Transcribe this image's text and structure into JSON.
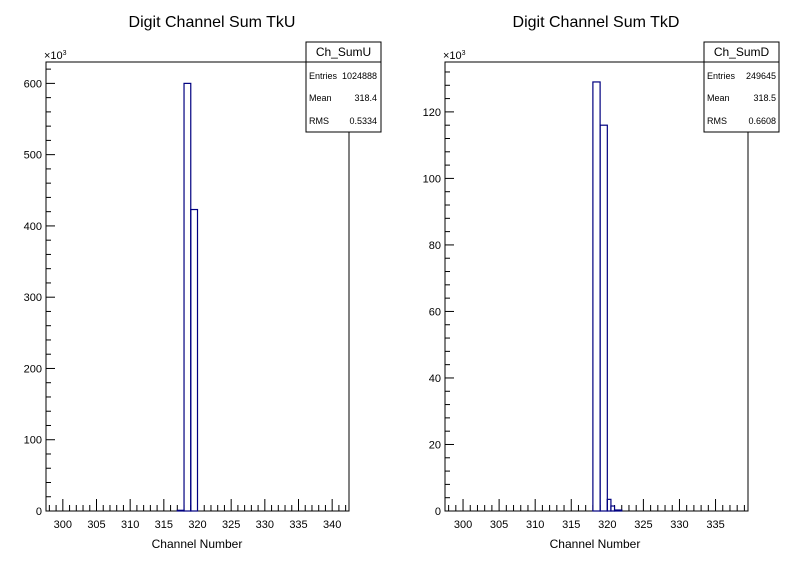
{
  "chart_data": [
    {
      "type": "histogram",
      "title": "Digit Channel Sum TkU",
      "xlabel": "Channel Number",
      "ylabel": "",
      "exponent_label": "×10",
      "exponent_sup": "3",
      "xlim": [
        297.5,
        342.5
      ],
      "ylim": [
        0,
        630
      ],
      "x_ticks": [
        300,
        305,
        310,
        315,
        320,
        325,
        330,
        335,
        340
      ],
      "y_ticks": [
        0,
        100,
        200,
        300,
        400,
        500,
        600
      ],
      "bins": [
        {
          "lo": 317.0,
          "hi": 318.0,
          "value": 1
        },
        {
          "lo": 318.0,
          "hi": 319.0,
          "value": 600
        },
        {
          "lo": 319.0,
          "hi": 320.0,
          "value": 423
        },
        {
          "lo": 320.0,
          "hi": 321.0,
          "value": 0
        }
      ],
      "stats": {
        "name": "Ch_SumU",
        "rows": [
          {
            "label": "Entries",
            "value": "1024888"
          },
          {
            "label": "Mean",
            "value": "318.4"
          },
          {
            "label": "RMS",
            "value": "0.5334"
          }
        ]
      }
    },
    {
      "type": "histogram",
      "title": "Digit Channel Sum TkD",
      "xlabel": "Channel Number",
      "ylabel": "",
      "exponent_label": "×10",
      "exponent_sup": "3",
      "xlim": [
        297.5,
        339.5
      ],
      "ylim": [
        0,
        135
      ],
      "x_ticks": [
        300,
        305,
        310,
        315,
        320,
        325,
        330,
        335
      ],
      "y_ticks": [
        0,
        20,
        40,
        60,
        80,
        100,
        120
      ],
      "bins": [
        {
          "lo": 318.0,
          "hi": 319.0,
          "value": 129
        },
        {
          "lo": 319.0,
          "hi": 320.0,
          "value": 116
        },
        {
          "lo": 320.0,
          "hi": 320.5,
          "value": 3.5
        },
        {
          "lo": 320.5,
          "hi": 321.0,
          "value": 1.5
        },
        {
          "lo": 321.0,
          "hi": 322.0,
          "value": 0.3
        }
      ],
      "stats": {
        "name": "Ch_SumD",
        "rows": [
          {
            "label": "Entries",
            "value": "249645"
          },
          {
            "label": "Mean",
            "value": "318.5"
          },
          {
            "label": "RMS",
            "value": "0.6608"
          }
        ]
      }
    }
  ]
}
